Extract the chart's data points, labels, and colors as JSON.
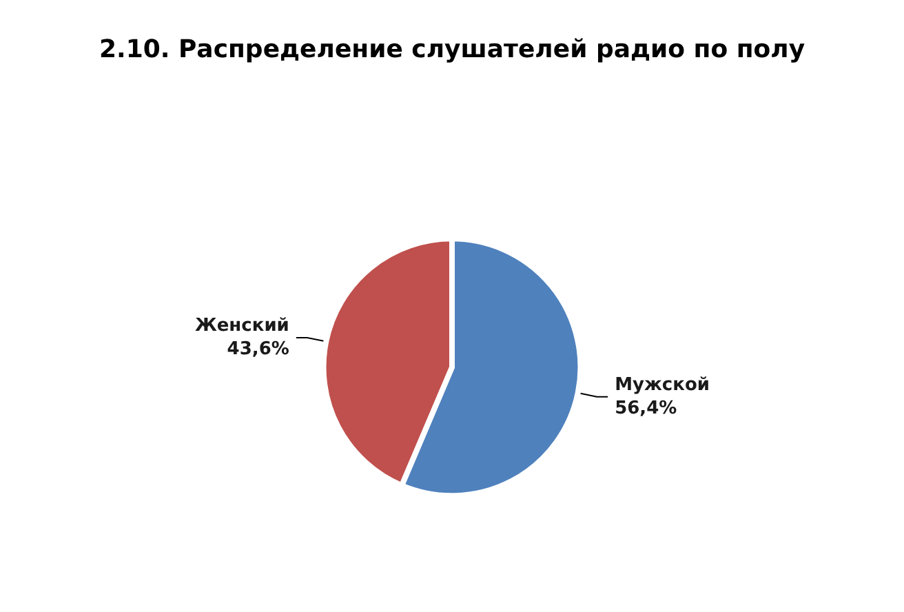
{
  "chart_data": {
    "type": "pie",
    "title": "2.10. Распределение слушателей радио по полу",
    "categories": [
      "Мужской",
      "Женский"
    ],
    "values": [
      56.4,
      43.6
    ],
    "colors": [
      "#4f81bd",
      "#c0504d"
    ],
    "value_labels": [
      "56,4%",
      "43,6%"
    ],
    "legend": false
  }
}
